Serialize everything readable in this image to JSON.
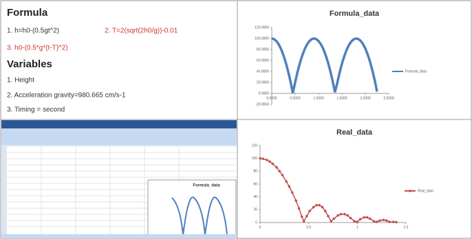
{
  "formula_panel": {
    "heading": "Formula",
    "formula_1": "1. h=h0-(0.5gt^2)",
    "formula_2": "2. T=2(sqrt(2h0/g))-0.01",
    "formula_3": "3. h0-(0.5*g*(t-T)^2)",
    "variables_heading": "Variables",
    "variable_1": "1. Height",
    "variable_2": "2. Acceleration gravity=980.665 cm/s-1",
    "variable_3": "3. Timing = second"
  },
  "screenshot": {
    "chart_title": "Formula_data"
  },
  "chart_data": [
    {
      "type": "line",
      "title": "Formula_data",
      "markers": false,
      "legend": "right",
      "x": [
        0,
        0.05,
        0.1,
        0.15,
        0.2,
        0.25,
        0.3,
        0.35,
        0.4,
        0.45,
        0.5,
        0.55,
        0.6,
        0.65,
        0.7,
        0.75,
        0.8,
        0.85,
        0.9,
        0.95,
        1.0,
        1.05,
        1.1,
        1.15,
        1.2,
        1.25,
        1.3,
        1.35,
        1.4,
        1.45,
        1.5,
        1.55,
        1.6,
        1.65,
        1.7,
        1.75,
        1.8,
        1.85,
        1.9,
        1.95,
        2.0,
        2.05,
        2.1,
        2.15,
        2.2,
        2.25
      ],
      "series": [
        {
          "name": "Formula_data",
          "color": "#4f7fbd",
          "values": [
            100,
            98.77,
            95.1,
            88.97,
            80.39,
            69.35,
            55.87,
            39.93,
            21.55,
            0.71,
            20.36,
            38.9,
            54.98,
            68.61,
            79.79,
            88.52,
            94.8,
            98.62,
            100.0,
            98.92,
            95.39,
            89.4,
            80.97,
            70.09,
            56.75,
            40.96,
            22.72,
            2.03,
            19.18,
            37.86,
            54.09,
            67.87,
            79.19,
            88.07,
            94.49,
            98.46,
            99.98,
            99.05,
            95.67,
            89.83,
            81.55,
            70.81,
            57.62,
            41.98,
            23.88,
            3.34
          ]
        }
      ],
      "xlim": [
        0,
        2.5
      ],
      "ylim": [
        -20,
        120
      ],
      "xticks": [
        {
          "value": 0,
          "label": "0.0000"
        },
        {
          "value": 0.5,
          "label": "0.5000"
        },
        {
          "value": 1,
          "label": "1.0000"
        },
        {
          "value": 1.5,
          "label": "1.5000"
        },
        {
          "value": 2,
          "label": "2.0000"
        },
        {
          "value": 2.5,
          "label": "2.5000"
        }
      ],
      "yticks": [
        {
          "value": -20,
          "label": "-20.0000"
        },
        {
          "value": 0,
          "label": "0.0000"
        },
        {
          "value": 20,
          "label": "20.0000"
        },
        {
          "value": 40,
          "label": "40.0000"
        },
        {
          "value": 60,
          "label": "60.0000"
        },
        {
          "value": 80,
          "label": "80.0000"
        },
        {
          "value": 100,
          "label": "100.0000"
        },
        {
          "value": 120,
          "label": "120.0000"
        }
      ]
    },
    {
      "type": "line",
      "title": "Real_data",
      "markers": true,
      "legend": "right",
      "x": [
        0,
        0.03,
        0.07,
        0.1,
        0.13,
        0.17,
        0.2,
        0.23,
        0.27,
        0.3,
        0.33,
        0.37,
        0.4,
        0.43,
        0.45,
        0.48,
        0.51,
        0.55,
        0.58,
        0.61,
        0.64,
        0.67,
        0.7,
        0.73,
        0.76,
        0.8,
        0.83,
        0.87,
        0.9,
        0.93,
        0.97,
        1.0,
        1.03,
        1.07,
        1.1,
        1.13,
        1.17,
        1.2,
        1.23,
        1.27,
        1.3,
        1.33,
        1.37,
        1.4
      ],
      "series": [
        {
          "name": "Real_data",
          "color": "#c0504d",
          "values": [
            100,
            99.5,
            97.5,
            95,
            91.5,
            86,
            80,
            74,
            64,
            56,
            47,
            34,
            22,
            9,
            2,
            10,
            18,
            24,
            27,
            27,
            24,
            18,
            10,
            2,
            6,
            11,
            13,
            13,
            11,
            7,
            2,
            1,
            5,
            8,
            8,
            6,
            2,
            1,
            3,
            4,
            3,
            1,
            1,
            0.5
          ]
        }
      ],
      "xlim": [
        0,
        1.5
      ],
      "ylim": [
        0,
        120
      ],
      "xticks": [
        0,
        0.5,
        1,
        1.5
      ],
      "yticks": [
        0,
        20,
        40,
        60,
        80,
        100,
        120
      ]
    }
  ]
}
